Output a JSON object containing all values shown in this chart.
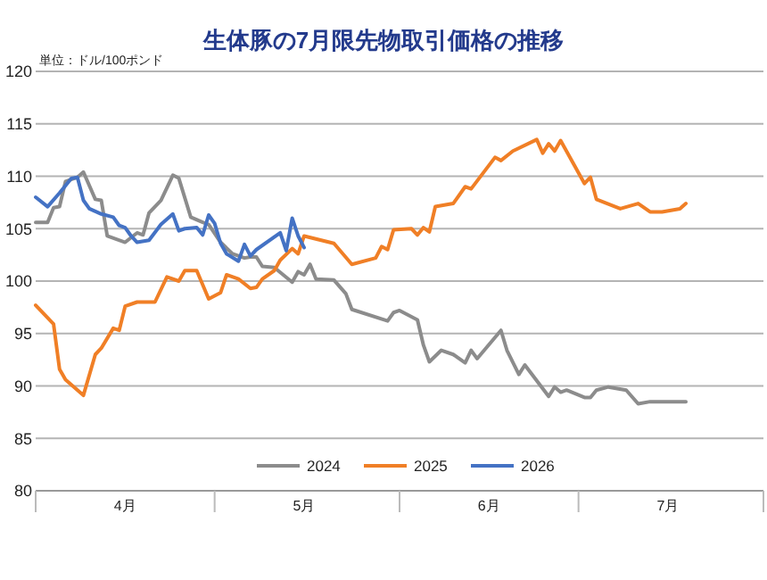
{
  "chart_data": {
    "type": "line",
    "title": "生体豚の7月限先物取引価格の推移",
    "ylabel": "単位：ドル/100ポンド",
    "xlim": [
      "--04-01",
      "--08-01"
    ],
    "xticks": [
      {
        "value": "--04-01",
        "label": null
      },
      {
        "value": "--04-16",
        "label": "4月"
      },
      {
        "value": "--05-01",
        "label": null
      },
      {
        "value": "--05-16",
        "label": "5月"
      },
      {
        "value": "--06-01",
        "label": null
      },
      {
        "value": "--06-16",
        "label": "6月"
      },
      {
        "value": "--07-01",
        "label": null
      },
      {
        "value": "--07-16",
        "label": "7月"
      },
      {
        "value": "--08-01",
        "label": null
      }
    ],
    "ylim": [
      80,
      120
    ],
    "yticks": [
      80,
      85,
      90,
      95,
      100,
      105,
      110,
      115,
      120
    ],
    "grid": "y",
    "legend": "bottom",
    "series": [
      {
        "name": "2024",
        "color": "#8c8c8c",
        "x": [
          "--04-01",
          "--04-03",
          "--04-04",
          "--04-05",
          "--04-06",
          "--04-08",
          "--04-09",
          "--04-11",
          "--04-12",
          "--04-13",
          "--04-16",
          "--04-18",
          "--04-19",
          "--04-20",
          "--04-22",
          "--04-24",
          "--04-25",
          "--04-27",
          "--04-29",
          "--04-30",
          "--05-02",
          "--05-04",
          "--05-06",
          "--05-07",
          "--05-08",
          "--05-09",
          "--05-11",
          "--05-14",
          "--05-15",
          "--05-16",
          "--05-17",
          "--05-18",
          "--05-21",
          "--05-23",
          "--05-24",
          "--05-30",
          "--05-31",
          "--06-01",
          "--06-04",
          "--06-05",
          "--06-06",
          "--06-08",
          "--06-10",
          "--06-12",
          "--06-13",
          "--06-14",
          "--06-18",
          "--06-19",
          "--06-21",
          "--06-22",
          "--06-26",
          "--06-27",
          "--06-28",
          "--06-29",
          "--07-02",
          "--07-03",
          "--07-04",
          "--07-06",
          "--07-09",
          "--07-11",
          "--07-13",
          "--07-19"
        ],
        "values": [
          105.6,
          105.6,
          107.0,
          107.1,
          109.5,
          109.9,
          110.4,
          107.8,
          107.7,
          104.3,
          103.7,
          104.6,
          104.4,
          106.5,
          107.7,
          110.1,
          109.8,
          106.1,
          105.6,
          105.4,
          103.7,
          102.6,
          102.2,
          102.3,
          102.3,
          101.4,
          101.3,
          99.9,
          100.9,
          100.6,
          101.6,
          100.2,
          100.1,
          98.8,
          97.3,
          96.2,
          97.0,
          97.2,
          96.3,
          93.9,
          92.3,
          93.4,
          93.0,
          92.2,
          93.4,
          92.6,
          95.3,
          93.4,
          91.1,
          92.0,
          89.0,
          89.9,
          89.4,
          89.6,
          88.9,
          88.9,
          89.6,
          89.9,
          89.6,
          88.3,
          88.5,
          88.5
        ]
      },
      {
        "name": "2025",
        "color": "#f07f26",
        "x": [
          "--04-01",
          "--04-04",
          "--04-05",
          "--04-06",
          "--04-09",
          "--04-11",
          "--04-12",
          "--04-14",
          "--04-15",
          "--04-16",
          "--04-18",
          "--04-21",
          "--04-23",
          "--04-25",
          "--04-26",
          "--04-28",
          "--04-30",
          "--05-02",
          "--05-03",
          "--05-05",
          "--05-07",
          "--05-08",
          "--05-09",
          "--05-11",
          "--05-12",
          "--05-14",
          "--05-15",
          "--05-16",
          "--05-21",
          "--05-24",
          "--05-28",
          "--05-29",
          "--05-30",
          "--05-31",
          "--06-03",
          "--06-04",
          "--06-05",
          "--06-06",
          "--06-07",
          "--06-10",
          "--06-12",
          "--06-13",
          "--06-17",
          "--06-18",
          "--06-20",
          "--06-24",
          "--06-25",
          "--06-26",
          "--06-27",
          "--06-28",
          "--07-02",
          "--07-03",
          "--07-04",
          "--07-08",
          "--07-11",
          "--07-13",
          "--07-15",
          "--07-18",
          "--07-19"
        ],
        "values": [
          97.7,
          95.9,
          91.6,
          90.6,
          89.1,
          93.0,
          93.6,
          95.5,
          95.3,
          97.6,
          98.0,
          98.0,
          100.4,
          100.0,
          101.0,
          101.0,
          98.3,
          98.9,
          100.6,
          100.2,
          99.3,
          99.4,
          100.2,
          101.0,
          102.0,
          103.1,
          102.6,
          104.3,
          103.6,
          101.6,
          102.2,
          103.3,
          103.0,
          104.9,
          105.0,
          104.4,
          105.1,
          104.7,
          107.1,
          107.4,
          109.0,
          108.8,
          111.8,
          111.5,
          112.4,
          113.5,
          112.2,
          113.1,
          112.4,
          113.4,
          109.3,
          109.9,
          107.8,
          106.9,
          107.4,
          106.6,
          106.6,
          106.9,
          107.4
        ]
      },
      {
        "name": "2026",
        "color": "#4472c4",
        "x": [
          "--04-01",
          "--04-03",
          "--04-05",
          "--04-07",
          "--04-08",
          "--04-09",
          "--04-10",
          "--04-12",
          "--04-14",
          "--04-15",
          "--04-16",
          "--04-17",
          "--04-18",
          "--04-20",
          "--04-22",
          "--04-24",
          "--04-25",
          "--04-26",
          "--04-28",
          "--04-29",
          "--04-30",
          "--05-01",
          "--05-02",
          "--05-03",
          "--05-05",
          "--05-06",
          "--05-07",
          "--05-08",
          "--05-12",
          "--05-13",
          "--05-14",
          "--05-15",
          "--05-16"
        ],
        "values": [
          108.0,
          107.1,
          108.4,
          109.8,
          109.9,
          107.7,
          106.9,
          106.4,
          106.1,
          105.3,
          105.1,
          104.3,
          103.7,
          103.9,
          105.4,
          106.4,
          104.8,
          105.0,
          105.1,
          104.4,
          106.3,
          105.5,
          103.6,
          102.6,
          101.9,
          103.5,
          102.4,
          103.0,
          104.6,
          102.9,
          106.0,
          104.3,
          103.2
        ]
      }
    ]
  }
}
